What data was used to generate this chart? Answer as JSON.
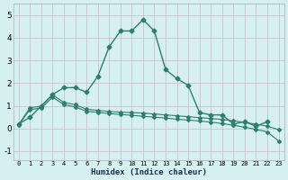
{
  "xlabel": "Humidex (Indice chaleur)",
  "ylabel": "",
  "xlim": [
    -0.5,
    23.5
  ],
  "ylim": [
    -1.4,
    5.5
  ],
  "yticks": [
    -1,
    0,
    1,
    2,
    3,
    4,
    5
  ],
  "xticks": [
    0,
    1,
    2,
    3,
    4,
    5,
    6,
    7,
    8,
    9,
    10,
    11,
    12,
    13,
    14,
    15,
    16,
    17,
    18,
    19,
    20,
    21,
    22,
    23
  ],
  "background_color": "#d6f0f0",
  "grid_color": "#c8b8c8",
  "line_color": "#2e7d6e",
  "series": [
    {
      "x": [
        0,
        1,
        2,
        3,
        4,
        5,
        6,
        7,
        8,
        9,
        10,
        11,
        12,
        13,
        14,
        15,
        16,
        17,
        18,
        19,
        20,
        21,
        22
      ],
      "y": [
        0.2,
        0.5,
        1.0,
        1.5,
        1.8,
        1.8,
        1.6,
        2.3,
        3.6,
        4.3,
        4.3,
        4.8,
        4.3,
        2.6,
        2.2,
        1.9,
        0.7,
        0.6,
        0.6,
        0.2,
        0.3,
        0.1,
        0.3
      ],
      "marker": "D",
      "markersize": 2.5,
      "linewidth": 1.0,
      "linestyle": "-"
    },
    {
      "x": [
        0,
        1,
        2,
        3,
        4,
        5,
        6,
        7,
        8,
        9,
        10,
        11,
        12,
        13,
        14,
        15,
        16,
        17,
        18,
        19,
        20,
        21,
        22,
        23
      ],
      "y": [
        0.18,
        0.92,
        0.98,
        1.48,
        1.15,
        1.05,
        0.85,
        0.8,
        0.75,
        0.72,
        0.7,
        0.68,
        0.64,
        0.6,
        0.56,
        0.52,
        0.48,
        0.44,
        0.4,
        0.34,
        0.27,
        0.19,
        0.1,
        -0.05
      ],
      "marker": "D",
      "markersize": 2.0,
      "linewidth": 0.8,
      "linestyle": "-"
    },
    {
      "x": [
        0,
        1,
        2,
        3,
        4,
        5,
        6,
        7,
        8,
        9,
        10,
        11,
        12,
        13,
        14,
        15,
        16,
        17,
        18,
        19,
        20,
        21,
        22,
        23
      ],
      "y": [
        0.16,
        0.84,
        0.9,
        1.38,
        1.05,
        0.95,
        0.76,
        0.71,
        0.66,
        0.62,
        0.58,
        0.54,
        0.5,
        0.46,
        0.41,
        0.37,
        0.33,
        0.28,
        0.22,
        0.14,
        0.06,
        -0.04,
        -0.15,
        -0.55
      ],
      "marker": "D",
      "markersize": 2.0,
      "linewidth": 0.8,
      "linestyle": "-"
    }
  ]
}
